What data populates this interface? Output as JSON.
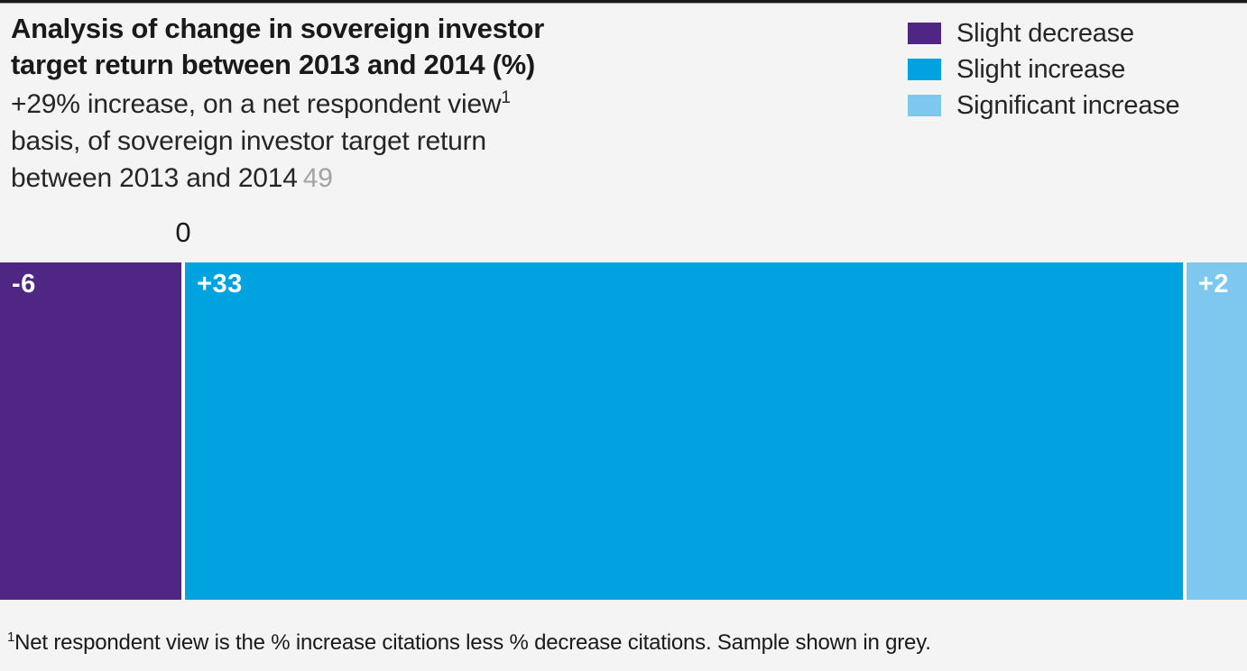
{
  "page": {
    "background": "#f4f4f4",
    "top_rule_color": "#1a1a1a"
  },
  "header": {
    "title_line1": "Analysis of change in sovereign investor",
    "title_line2": "target return between 2013 and 2014 (%)",
    "subtitle_line1": "+29% increase, on a net respondent view",
    "subtitle_superscript": "1",
    "subtitle_line2": "basis, of sovereign investor target return",
    "subtitle_line3": "between 2013 and 2014",
    "sample_size": "49"
  },
  "legend": {
    "position": "top-right",
    "items": [
      {
        "label": "Slight decrease",
        "color": "#4f2684"
      },
      {
        "label": "Slight increase",
        "color": "#00a2e0"
      },
      {
        "label": "Significant increase",
        "color": "#7ec8f0"
      }
    ]
  },
  "chart_data": {
    "type": "bar",
    "variant": "horizontal-stacked-diverging",
    "title": "Analysis of change in sovereign investor target return between 2013 and 2014 (%)",
    "subtitle": "+29% increase, on a net respondent view basis, of sovereign investor target return between 2013 and 2014",
    "sample_size": 49,
    "net_change_pct": 29,
    "zero_tick_label": "0",
    "x_range": [
      -6,
      35
    ],
    "grid": false,
    "legend_position": "top-right",
    "segments": [
      {
        "name": "Slight decrease",
        "value": -6,
        "bar_label": "-6",
        "color": "#4f2684",
        "text_color": "#ffffff"
      },
      {
        "name": "Slight increase",
        "value": 33,
        "bar_label": "+33",
        "color": "#00a2e0",
        "text_color": "#ffffff"
      },
      {
        "name": "Significant increase",
        "value": 2,
        "bar_label": "+2",
        "color": "#7ec8f0",
        "text_color": "#ffffff"
      }
    ]
  },
  "footnote": {
    "superscript": "1",
    "text": "Net respondent view is the % increase citations less % decrease citations. Sample shown in grey."
  }
}
